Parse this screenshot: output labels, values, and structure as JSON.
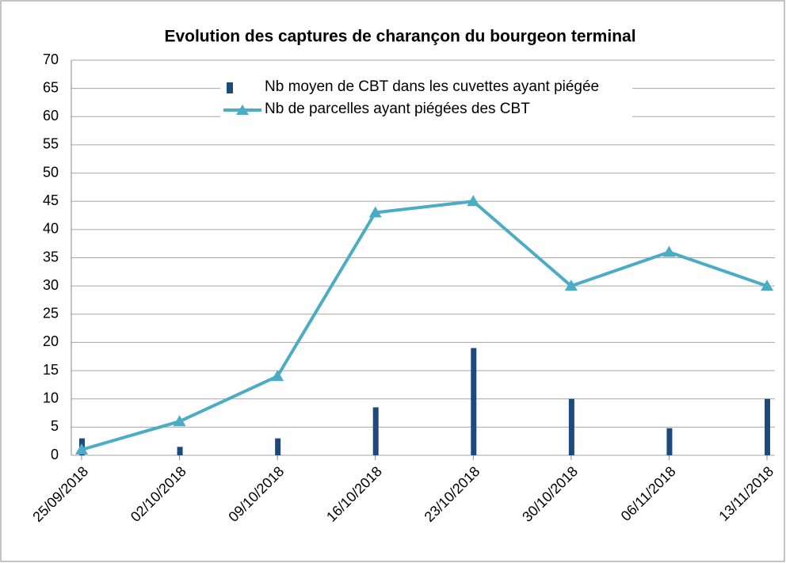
{
  "chart_data": {
    "type": "bar+line",
    "title": "Evolution des captures de charançon du bourgeon terminal",
    "categories": [
      "25/09/2018",
      "02/10/2018",
      "09/10/2018",
      "16/10/2018",
      "23/10/2018",
      "30/10/2018",
      "06/11/2018",
      "13/11/2018"
    ],
    "series": [
      {
        "name": "Nb moyen de CBT dans les cuvettes ayant piégée",
        "type": "bar",
        "color": "#1f497d",
        "values": [
          3,
          1.5,
          3,
          8.5,
          19,
          10,
          4.8,
          10
        ]
      },
      {
        "name": "Nb de parcelles ayant piégées des CBT",
        "type": "line",
        "color": "#4bacc6",
        "values": [
          1,
          6,
          14,
          43,
          45,
          30,
          36,
          30
        ]
      }
    ],
    "ylim": [
      0,
      70
    ],
    "yticks": [
      0,
      5,
      10,
      15,
      20,
      25,
      30,
      35,
      40,
      45,
      50,
      55,
      60,
      65,
      70
    ],
    "grid": true,
    "legend": "top"
  }
}
